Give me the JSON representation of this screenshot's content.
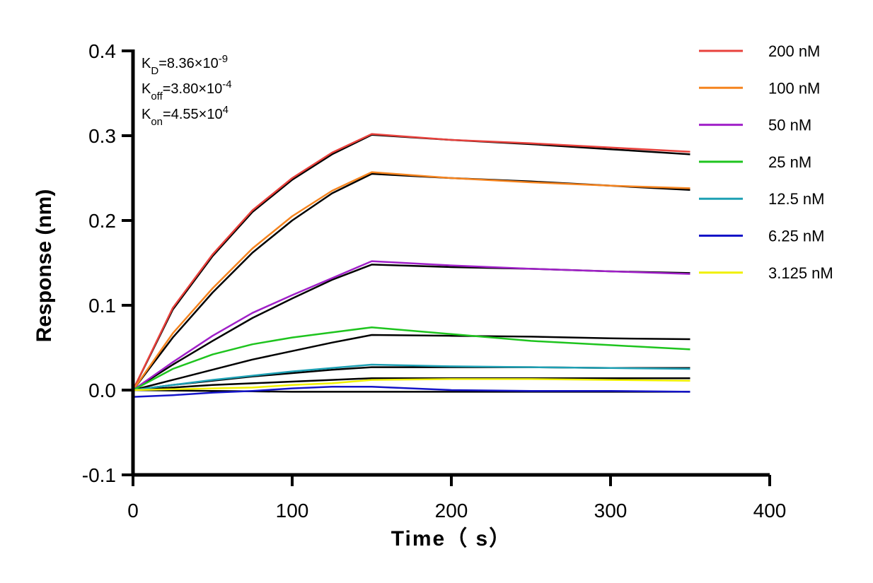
{
  "chart_data": {
    "type": "line",
    "xlabel": "Time（ s）",
    "ylabel": "Response (nm)",
    "xlim": [
      0,
      400
    ],
    "ylim": [
      -0.1,
      0.4
    ],
    "xticks": [
      "0",
      "100",
      "200",
      "300",
      "400"
    ],
    "yticks": [
      "-0.1",
      "0.0",
      "0.1",
      "0.2",
      "0.3",
      "0.4"
    ],
    "grid": false,
    "legend_position": "right",
    "association_end": 150,
    "time_end": 350,
    "kinetics": [
      {
        "label": "K",
        "sub": "D",
        "value": "=8.36×10",
        "exp": "-9"
      },
      {
        "label": "K",
        "sub": "off",
        "value": "=3.80×10",
        "exp": "-4"
      },
      {
        "label": "K",
        "sub": "on",
        "value": "=4.55×10",
        "exp": "4"
      }
    ],
    "series": [
      {
        "name": "200 nM",
        "color": "#e8413c",
        "x": [
          0,
          25,
          50,
          75,
          100,
          125,
          150,
          200,
          250,
          300,
          350
        ],
        "y": [
          0,
          0.097,
          0.16,
          0.212,
          0.25,
          0.28,
          0.302,
          0.295,
          0.291,
          0.286,
          0.281
        ]
      },
      {
        "name": "100 nM",
        "color": "#f5841f",
        "x": [
          0,
          25,
          50,
          75,
          100,
          125,
          150,
          200,
          250,
          300,
          350
        ],
        "y": [
          0,
          0.067,
          0.12,
          0.167,
          0.205,
          0.235,
          0.257,
          0.25,
          0.245,
          0.241,
          0.238
        ]
      },
      {
        "name": "50 nM",
        "color": "#a020c8",
        "x": [
          0,
          25,
          50,
          75,
          100,
          125,
          150,
          200,
          250,
          300,
          350
        ],
        "y": [
          0,
          0.033,
          0.064,
          0.091,
          0.112,
          0.132,
          0.152,
          0.147,
          0.143,
          0.14,
          0.137
        ]
      },
      {
        "name": "25 nM",
        "color": "#1ec41e",
        "x": [
          0,
          25,
          50,
          75,
          100,
          125,
          150,
          200,
          250,
          300,
          350
        ],
        "y": [
          0,
          0.025,
          0.042,
          0.054,
          0.062,
          0.068,
          0.074,
          0.066,
          0.058,
          0.053,
          0.048
        ]
      },
      {
        "name": "12.5 nM",
        "color": "#1ea0b4",
        "x": [
          0,
          25,
          50,
          75,
          100,
          125,
          150,
          200,
          250,
          300,
          350
        ],
        "y": [
          0,
          0.006,
          0.012,
          0.017,
          0.022,
          0.026,
          0.03,
          0.028,
          0.027,
          0.026,
          0.025
        ]
      },
      {
        "name": "6.25 nM",
        "color": "#1414c8",
        "x": [
          0,
          25,
          50,
          75,
          100,
          125,
          150,
          200,
          250,
          300,
          350
        ],
        "y": [
          -0.008,
          -0.006,
          -0.003,
          -0.001,
          0.002,
          0.004,
          0.004,
          0.0,
          -0.001,
          -0.001,
          -0.002
        ]
      },
      {
        "name": "3.125 nM",
        "color": "#f0f000",
        "x": [
          0,
          25,
          50,
          75,
          100,
          125,
          150,
          200,
          250,
          300,
          350
        ],
        "y": [
          0,
          0.001,
          0.002,
          0.003,
          0.006,
          0.008,
          0.012,
          0.013,
          0.013,
          0.012,
          0.011
        ]
      }
    ],
    "fits": [
      {
        "x": [
          0,
          25,
          50,
          75,
          100,
          125,
          150,
          200,
          250,
          300,
          350
        ],
        "y": [
          0,
          0.095,
          0.158,
          0.21,
          0.248,
          0.278,
          0.301,
          0.295,
          0.29,
          0.284,
          0.278
        ]
      },
      {
        "x": [
          0,
          25,
          50,
          75,
          100,
          125,
          150,
          200,
          250,
          300,
          350
        ],
        "y": [
          0,
          0.062,
          0.115,
          0.162,
          0.2,
          0.232,
          0.255,
          0.25,
          0.246,
          0.241,
          0.236
        ]
      },
      {
        "x": [
          0,
          25,
          50,
          75,
          100,
          125,
          150,
          200,
          250,
          300,
          350
        ],
        "y": [
          0,
          0.03,
          0.058,
          0.085,
          0.108,
          0.13,
          0.148,
          0.145,
          0.143,
          0.14,
          0.138
        ]
      },
      {
        "x": [
          0,
          25,
          50,
          75,
          100,
          125,
          150,
          200,
          250,
          300,
          350
        ],
        "y": [
          0,
          0.012,
          0.024,
          0.036,
          0.046,
          0.056,
          0.065,
          0.064,
          0.063,
          0.061,
          0.06
        ]
      },
      {
        "x": [
          0,
          25,
          50,
          75,
          100,
          125,
          150,
          200,
          250,
          300,
          350
        ],
        "y": [
          0,
          0.006,
          0.011,
          0.016,
          0.02,
          0.024,
          0.027,
          0.027,
          0.027,
          0.026,
          0.026
        ]
      },
      {
        "x": [
          0,
          25,
          50,
          75,
          100,
          125,
          150,
          200,
          250,
          300,
          350
        ],
        "y": [
          0,
          0.003,
          0.006,
          0.008,
          0.01,
          0.012,
          0.014,
          0.014,
          0.014,
          0.014,
          0.014
        ]
      },
      {
        "x": [
          0,
          25,
          50,
          75,
          100,
          125,
          150,
          200,
          250,
          300,
          350
        ],
        "y": [
          0,
          -0.0005,
          -0.001,
          -0.0015,
          -0.002,
          -0.002,
          -0.002,
          -0.002,
          -0.002,
          -0.002,
          -0.002
        ]
      }
    ]
  }
}
